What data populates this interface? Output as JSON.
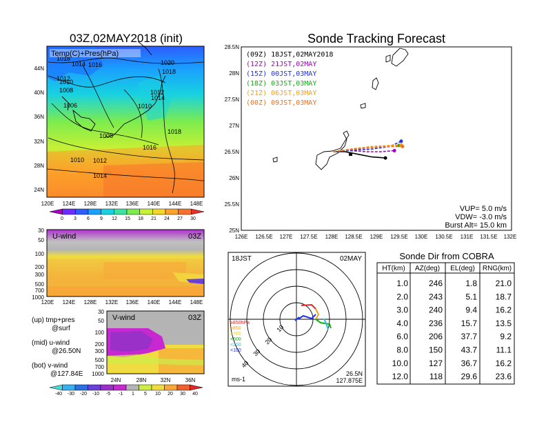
{
  "left_map": {
    "title": "03Z,02MAY2018 (init)",
    "label": "Temp(C)+Pres(hPa)",
    "lat_labels": [
      "44N",
      "40N",
      "36N",
      "32N",
      "28N",
      "24N"
    ],
    "lon_labels": [
      "120E",
      "124E",
      "128E",
      "132E",
      "136E",
      "140E",
      "144E",
      "148E"
    ],
    "isobars": [
      "1018",
      "1014",
      "1016",
      "1020",
      "1018",
      "1012",
      "1010",
      "1008",
      "1012",
      "1014",
      "1006",
      "1010",
      "1008",
      "1018",
      "1016",
      "1010",
      "1012",
      "1014"
    ],
    "colorbar_labels": [
      "0",
      "3",
      "6",
      "9",
      "12",
      "15",
      "18",
      "21",
      "24",
      "27",
      "30"
    ],
    "colorbar_colors": [
      "#a800c8",
      "#6a2cff",
      "#2d5cff",
      "#1aa0ff",
      "#18d2e0",
      "#3ee2a0",
      "#7cec4e",
      "#c8f034",
      "#f4d62a",
      "#fca22a",
      "#f8702a",
      "#e8302a"
    ]
  },
  "uwind": {
    "label": "U-wind",
    "time": "03Z",
    "p_labels": [
      "30",
      "50",
      "100",
      "200",
      "300",
      "500",
      "700",
      "1000"
    ],
    "lon_labels": [
      "120E",
      "124E",
      "128E",
      "132E",
      "136E",
      "140E",
      "144E",
      "148E"
    ]
  },
  "vwind": {
    "label": "V-wind",
    "time": "03Z",
    "p_labels": [
      "30",
      "50",
      "100",
      "200",
      "300",
      "500",
      "700",
      "1000"
    ],
    "lat_labels": [
      "24N",
      "28N",
      "32N",
      "36N"
    ]
  },
  "legend_text": {
    "up": "(up) tmp+pres",
    "up2": "@surf",
    "mid": "(mid) u-wind",
    "mid2": "@26.50N",
    "bot": "(bot) v-wind",
    "bot2": "@127.84E"
  },
  "wind_colorbar": {
    "labels": [
      "-40",
      "-30",
      "-20",
      "-10",
      "-5",
      "-1",
      "1",
      "5",
      "10",
      "20",
      "30",
      "40"
    ],
    "colors": [
      "#4ad8d8",
      "#38b0f0",
      "#2a70e0",
      "#6a40d8",
      "#9a30c8",
      "#c828d0",
      "#b4b4b4",
      "#ccec4a",
      "#f0dc40",
      "#f8a838",
      "#f06030",
      "#e02828"
    ]
  },
  "tracking": {
    "title": "Sonde Tracking Forecast",
    "legend": [
      {
        "text": "(09Z)  18JST,02MAY2018",
        "color": "#000000"
      },
      {
        "text": "(12Z)  21JST,02MAY",
        "color": "#a000c0"
      },
      {
        "text": "(15Z)  00JST,03MAY",
        "color": "#2030e8"
      },
      {
        "text": "(18Z)  03JST,03MAY",
        "color": "#10b010"
      },
      {
        "text": "(21Z)  06JST,03MAY",
        "color": "#f0a020"
      },
      {
        "text": "(00Z)  09JST,03MAY",
        "color": "#f07020"
      }
    ],
    "params": [
      "VUP= 5.0 m/s",
      "VDW= -3.0 m/s",
      "Burst Alt= 15.0 km"
    ],
    "lat_labels": [
      "28.5N",
      "28N",
      "27.5N",
      "27N",
      "26.5N",
      "26N",
      "25.5N",
      "25N"
    ],
    "lon_labels": [
      "126E",
      "126.5E",
      "127E",
      "127.5E",
      "128E",
      "128.5E",
      "129E",
      "129.5E",
      "130E",
      "130.5E",
      "131E",
      "131.5E",
      "132E"
    ]
  },
  "chart_data": [
    {
      "type": "line",
      "title": "Sonde Tracking Forecast",
      "xlim": [
        126,
        132
      ],
      "ylim": [
        25,
        28.5
      ],
      "series": [
        {
          "name": "(09Z) 18JST,02MAY2018",
          "color": "#000000",
          "x": [
            128.05,
            128.3,
            128.6,
            128.9,
            129.2
          ],
          "y": [
            26.5,
            26.5,
            26.45,
            26.4,
            26.38
          ]
        },
        {
          "name": "(12Z) 21JST,02MAY",
          "color": "#a000c0",
          "x": [
            128.05,
            128.4,
            128.8,
            129.1,
            129.4
          ],
          "y": [
            26.5,
            26.52,
            26.5,
            26.5,
            26.52
          ]
        },
        {
          "name": "(15Z) 00JST,03MAY",
          "color": "#2030e8",
          "x": [
            128.05,
            128.5,
            128.9,
            129.3,
            129.55
          ],
          "y": [
            26.5,
            26.53,
            26.55,
            26.6,
            26.7
          ]
        },
        {
          "name": "(18Z) 03JST,03MAY",
          "color": "#10b010",
          "x": [
            128.05,
            128.5,
            128.9,
            129.3,
            129.5
          ],
          "y": [
            26.5,
            26.55,
            26.58,
            26.6,
            26.62
          ]
        },
        {
          "name": "(21Z) 06JST,03MAY",
          "color": "#f0a020",
          "x": [
            128.05,
            128.5,
            128.9,
            129.3,
            129.55
          ],
          "y": [
            26.5,
            26.56,
            26.6,
            26.62,
            26.63
          ]
        },
        {
          "name": "(00Z) 09JST,03MAY",
          "color": "#f07020",
          "x": [
            128.05,
            128.5,
            128.9,
            129.3,
            129.58
          ],
          "y": [
            26.5,
            26.55,
            26.58,
            26.6,
            26.6
          ]
        }
      ]
    },
    {
      "type": "table",
      "title": "Sonde Dir from COBRA",
      "columns": [
        "HT(km)",
        "AZ(deg)",
        "EL(deg)",
        "RNG(km)"
      ],
      "rows": [
        [
          "1.0",
          "246",
          "1.8",
          "21.0"
        ],
        [
          "2.0",
          "243",
          "5.1",
          "18.7"
        ],
        [
          "3.0",
          "240",
          "9.4",
          "16.2"
        ],
        [
          "4.0",
          "236",
          "15.7",
          "13.5"
        ],
        [
          "6.0",
          "206",
          "37.7",
          "9.2"
        ],
        [
          "8.0",
          "150",
          "43.7",
          "11.1"
        ],
        [
          "10.0",
          "127",
          "36.7",
          "16.2"
        ],
        [
          "12.0",
          "118",
          "29.6",
          "23.6"
        ]
      ]
    }
  ],
  "polar": {
    "time_label": "18JST",
    "date_label": "02MAY",
    "ring_labels": [
      "10",
      "20",
      "30",
      "40"
    ],
    "level_legend": [
      {
        "text": "≥850hPa",
        "color": "#e02828"
      },
      {
        "text": "≥850",
        "color": "#f0a020"
      },
      {
        "text": "≥700",
        "color": "#e8d020"
      },
      {
        "text": "<500",
        "color": "#10b010"
      },
      {
        "text": "<250",
        "color": "#30c0e0"
      },
      {
        "text": "<100",
        "color": "#2030e8"
      }
    ],
    "unit": "ms-1",
    "loc_lat": "26.5N",
    "loc_lon": "127.875E"
  },
  "table": {
    "title": "Sonde Dir from COBRA"
  }
}
